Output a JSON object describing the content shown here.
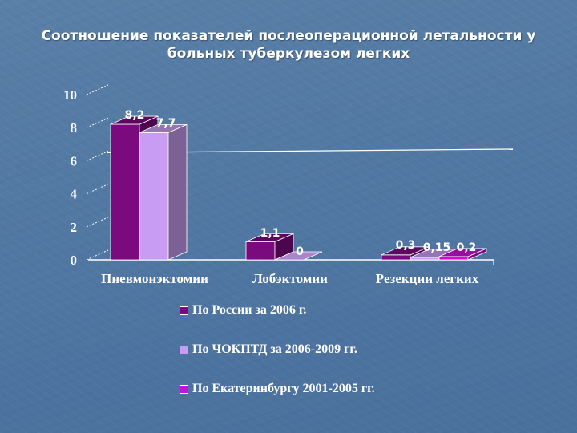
{
  "title": {
    "line1": "Соотношение показателей послеоперационной летальности у",
    "line2": "больных туберкулезом легких"
  },
  "colors": {
    "background": "#5279a3",
    "series1": "#7a0a7e",
    "series2": "#c89cf2",
    "series3": "#cc10d6",
    "axis": "#ffffff"
  },
  "chart_data": {
    "type": "bar",
    "title": "Соотношение показателей послеоперационной летальности у больных туберкулезом легких",
    "xlabel": "",
    "ylabel": "",
    "ylim": [
      0,
      10
    ],
    "yticks": [
      "0",
      "2",
      "4",
      "6",
      "8",
      "10"
    ],
    "categories": [
      "Пневмонэктомии",
      "Лобэктомии",
      "Резекции легких"
    ],
    "series": [
      {
        "name": "По России за 2006 г.",
        "values": [
          8.2,
          1.1,
          0.3
        ],
        "labels": [
          "8,2",
          "1,1",
          "0,3"
        ],
        "color": "#7a0a7e"
      },
      {
        "name": "По ЧОКПТД за 2006-2009 гг.",
        "values": [
          7.7,
          0,
          0.15
        ],
        "labels": [
          "7,7",
          "0",
          "0,15"
        ],
        "color": "#c89cf2"
      },
      {
        "name": "По Екатеринбургу 2001-2005 гг.",
        "values": [
          null,
          null,
          0.2
        ],
        "labels": [
          "",
          "",
          "0,2"
        ],
        "color": "#cc10d6"
      }
    ],
    "legend_position": "bottom",
    "grid": false,
    "style": "3d-clustered"
  },
  "legend": [
    {
      "label": "По России за 2006 г.",
      "color": "#7a0a7e"
    },
    {
      "label": "По ЧОКПТД за 2006-2009 гг.",
      "color": "#c89cf2"
    },
    {
      "label": "По Екатеринбургу 2001-2005 гг.",
      "color": "#cc10d6"
    }
  ]
}
